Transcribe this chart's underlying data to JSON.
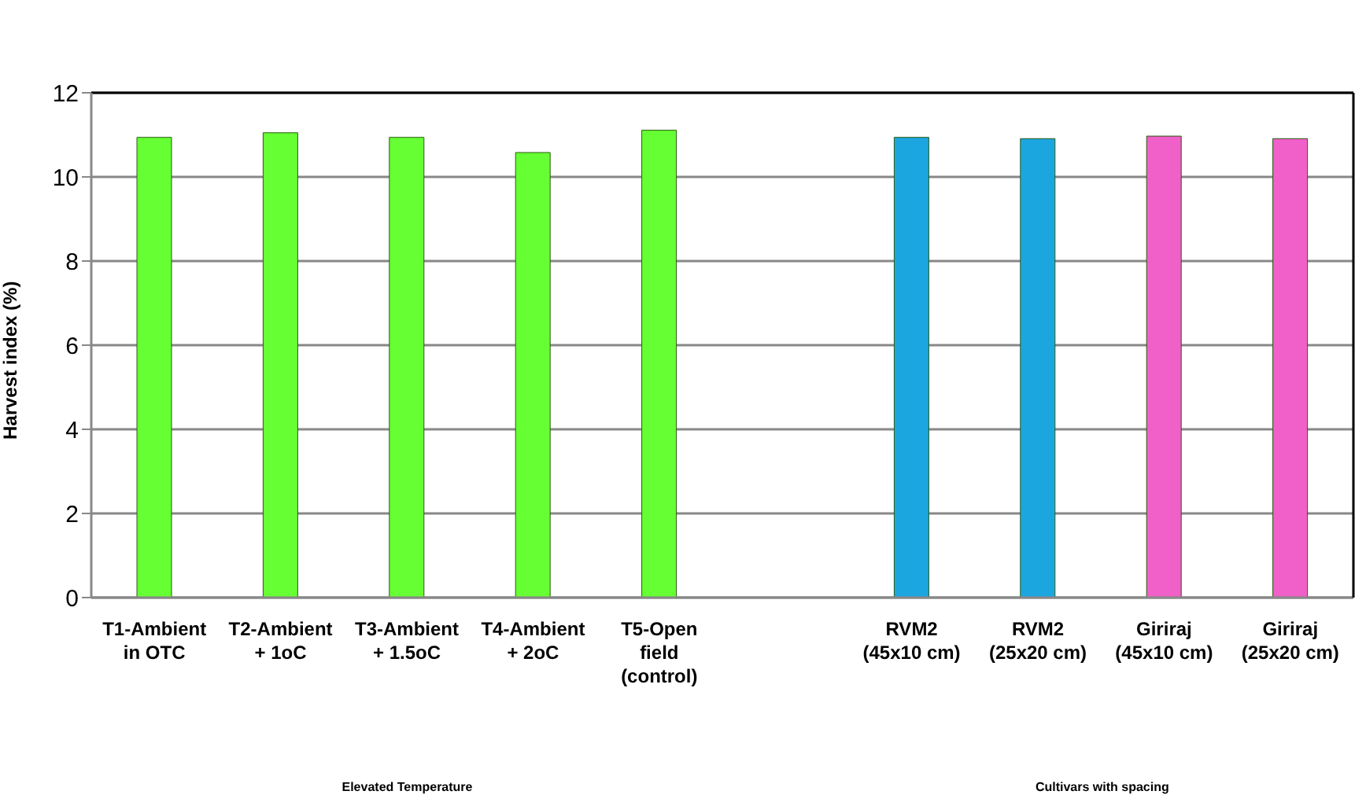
{
  "chart_data": {
    "type": "bar",
    "ylabel": "Harvest index (%)",
    "categories": [
      "T1-Ambient in OTC",
      "T2-Ambient + 1oC",
      "T3-Ambient + 1.5oC",
      "T4-Ambient + 2oC",
      "T5-Open field (control)",
      null,
      "RVM2 (45x10 cm)",
      "RVM2 (25x20 cm)",
      "Giriraj (45x10 cm)",
      "Giriraj (25x20 cm)"
    ],
    "values": [
      10.94,
      11.05,
      10.94,
      10.58,
      11.11,
      null,
      10.94,
      10.91,
      10.97,
      10.91
    ],
    "colors": [
      "#66ff33",
      "#66ff33",
      "#66ff33",
      "#66ff33",
      "#66ff33",
      "#66ff33",
      "#1ca6e0",
      "#1ca6e0",
      "#f060c8",
      "#f060c8"
    ],
    "ylim": [
      0,
      12
    ],
    "yticks": [
      0,
      2,
      4,
      6,
      8,
      10,
      12
    ],
    "grid": "y",
    "annotations": [
      "Elevated Temperature",
      "Cultivars with spacing"
    ]
  }
}
